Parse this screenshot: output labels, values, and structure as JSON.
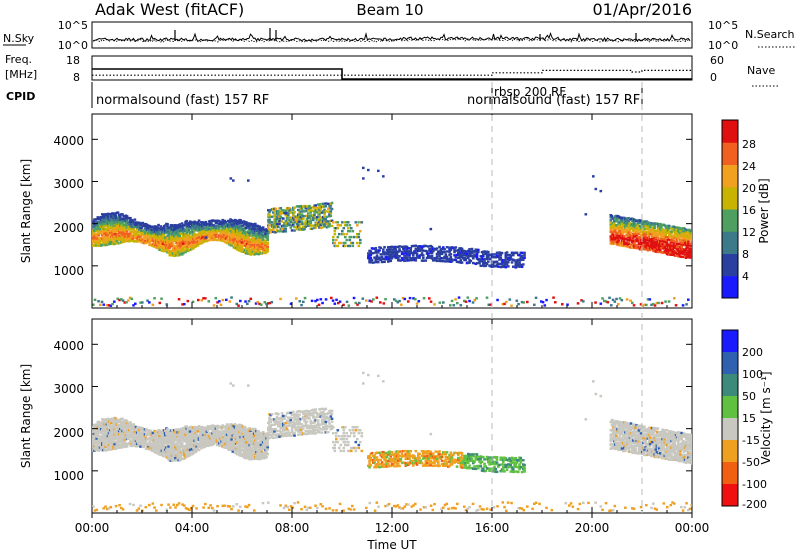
{
  "header": {
    "title": "Adak West (fitACF)",
    "beam": "Beam 10",
    "date": "01/Apr/2016"
  },
  "x_axis": {
    "label": "Time UT",
    "ticks": [
      "00:00",
      "04:00",
      "08:00",
      "12:00",
      "16:00",
      "20:00",
      "00:00"
    ],
    "range_hours": [
      0,
      24
    ]
  },
  "noise_panel": {
    "left_label": "N.Sky",
    "right_label": "N.Search",
    "left_ticks": [
      "10^5",
      "10^0"
    ],
    "right_ticks": [
      "10^5",
      "10^0"
    ]
  },
  "freq_panel": {
    "left_label_line1": "Freq.",
    "left_label_line2": "[MHz]",
    "right_label": "Nave",
    "left_ticks": [
      "18",
      "8"
    ],
    "right_ticks": [
      "60",
      "0"
    ],
    "freq_mhz_by_time": [
      [
        0,
        12.6
      ],
      [
        10,
        12.6
      ],
      [
        10,
        8.4
      ],
      [
        24,
        8.4
      ]
    ],
    "nave_by_time": [
      [
        0,
        12
      ],
      [
        16,
        12
      ],
      [
        16,
        18
      ],
      [
        18,
        18
      ],
      [
        18,
        24
      ],
      [
        21.6,
        24
      ],
      [
        21.6,
        20
      ],
      [
        22,
        20
      ],
      [
        22,
        24
      ],
      [
        24,
        24
      ]
    ]
  },
  "cpid": {
    "label": "CPID",
    "programs": [
      {
        "text": "normalsound (fast) 157 RF",
        "start_hour": 0
      },
      {
        "text": "rbsp 200 RF",
        "start_hour": 16
      },
      {
        "text": "normalsound (fast) 157 RF",
        "start_hour": 16
      },
      {
        "start_hour": 22
      }
    ]
  },
  "power_panel": {
    "ylabel": "Slant Range [km]",
    "yticks": [
      "1000",
      "2000",
      "3000",
      "4000"
    ],
    "colorbar_label": "Power [dB]",
    "colorbar_ticks": [
      "4",
      "8",
      "12",
      "16",
      "20",
      "24",
      "28"
    ],
    "colorbar_colors": [
      "#1a1aff",
      "#2a3f9f",
      "#3c7a8a",
      "#4fa060",
      "#c8b400",
      "#f2a020",
      "#f06020",
      "#e01010"
    ]
  },
  "velocity_panel": {
    "ylabel": "Slant Range [km]",
    "yticks": [
      "1000",
      "2000",
      "3000",
      "4000"
    ],
    "colorbar_label": "Velocity [m s⁻¹]",
    "colorbar_ticks": [
      "200",
      "100",
      "50",
      "15",
      "-15",
      "-50",
      "-100",
      "-200"
    ],
    "colorbar_colors": [
      "#1a1aff",
      "#3060b0",
      "#3c8a7a",
      "#60c040",
      "#c8c8c0",
      "#f0a020",
      "#f06010",
      "#f01010"
    ]
  },
  "dashed_times_hours": [
    16,
    22
  ],
  "chart_data": [
    {
      "type": "line",
      "title": "",
      "xlabel": "Time UT",
      "ylabel": "Freq. [MHz]",
      "x_range_hours": [
        0,
        24
      ],
      "ylim": [
        8,
        18
      ],
      "series": [
        {
          "values_by_time": [
            [
              0,
              12.6
            ],
            [
              10,
              12.6
            ],
            [
              10,
              8.4
            ],
            [
              24,
              8.4
            ]
          ]
        }
      ]
    },
    {
      "type": "heatmap",
      "title": "Beam 10",
      "xlabel": "Time UT",
      "ylabel": "Slant Range [km]",
      "colorbar": "Power [dB]",
      "x_range_hours": [
        0,
        24
      ],
      "ylim": [
        0,
        4600
      ],
      "echo_regions": [
        {
          "time_start": 0.0,
          "time_end": 7.0,
          "range_km_min": 1400,
          "range_km_max": 2200,
          "power_db_approx": 20
        },
        {
          "time_start": 7.0,
          "time_end": 9.6,
          "range_km_min": 1900,
          "range_km_max": 2400,
          "power_db_approx": 12
        },
        {
          "time_start": 11.0,
          "time_end": 17.3,
          "range_km_min": 1000,
          "range_km_max": 1500,
          "power_db_approx": 6
        },
        {
          "time_start": 20.7,
          "time_end": 24.0,
          "range_km_min": 1300,
          "range_km_max": 2300,
          "power_db_approx": 22
        }
      ]
    },
    {
      "type": "heatmap",
      "title": "",
      "xlabel": "Time UT",
      "ylabel": "Slant Range [km]",
      "colorbar": "Velocity [m s-1]",
      "x_range_hours": [
        0,
        24
      ],
      "ylim": [
        0,
        4600
      ],
      "echo_regions": [
        {
          "time_start": 0.0,
          "time_end": 9.6,
          "range_km_min": 1400,
          "range_km_max": 2400,
          "velocity_ms_approx": 0
        },
        {
          "time_start": 11.0,
          "time_end": 14.8,
          "range_km_min": 1000,
          "range_km_max": 1500,
          "velocity_ms_approx": -50
        },
        {
          "time_start": 13.5,
          "time_end": 17.3,
          "range_km_min": 1000,
          "range_km_max": 1500,
          "velocity_ms_approx": 40
        },
        {
          "time_start": 20.7,
          "time_end": 24.0,
          "range_km_min": 1300,
          "range_km_max": 2300,
          "velocity_ms_approx": 0
        }
      ]
    }
  ]
}
